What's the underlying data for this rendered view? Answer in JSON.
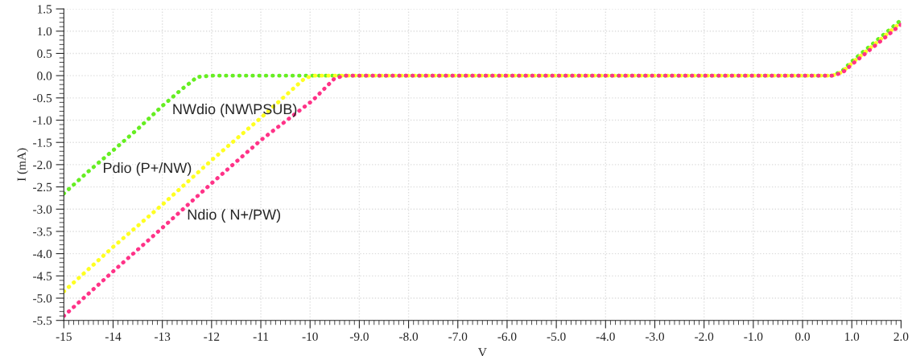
{
  "chart_data": {
    "type": "line",
    "xlabel": "V",
    "ylabel": "I (mA)",
    "series": [
      {
        "name": "NWdio (NW\\PSUB)",
        "color": "#66ee22",
        "x": [
          -15,
          -14.5,
          -14,
          -13.5,
          -13,
          -12.6,
          -12.4,
          -12.3,
          -12.0,
          0.6,
          0.8,
          1.0,
          2.0
        ],
        "values": [
          -2.65,
          -2.15,
          -1.68,
          -1.2,
          -0.68,
          -0.3,
          -0.13,
          -0.03,
          0,
          0,
          0.1,
          0.32,
          1.25
        ]
      },
      {
        "name": "Pdio (P+/NW)",
        "color": "#ffff22",
        "x": [
          -15,
          -14,
          -13,
          -12,
          -11,
          -10.1,
          -9.9,
          0.6,
          0.8,
          1.0,
          2.0
        ],
        "values": [
          -4.85,
          -3.85,
          -2.9,
          -1.9,
          -0.95,
          -0.05,
          0,
          0,
          0.08,
          0.28,
          1.2
        ]
      },
      {
        "name": "Ndio ( N+/PW)",
        "color": "#ff3388",
        "x": [
          -15,
          -14,
          -13,
          -12,
          -11,
          -9.95,
          -9.5,
          -9.3,
          0.6,
          0.8,
          1.0,
          2.0
        ],
        "values": [
          -5.4,
          -4.4,
          -3.42,
          -2.42,
          -1.45,
          -0.56,
          -0.06,
          0,
          0,
          0.06,
          0.25,
          1.15
        ]
      }
    ],
    "xlim": [
      -15,
      2
    ],
    "ylim": [
      -5.5,
      1.5
    ],
    "xticks": [
      -15,
      -14,
      -13,
      -12,
      -11,
      -10,
      {
        "value": -9,
        "label": "-9.0"
      },
      {
        "value": -8,
        "label": "-8.0"
      },
      {
        "value": -7,
        "label": "-7.0"
      },
      {
        "value": -6,
        "label": "-6.0"
      },
      {
        "value": -5,
        "label": "-5.0"
      },
      {
        "value": -4,
        "label": "-4.0"
      },
      {
        "value": -3,
        "label": "-3.0"
      },
      {
        "value": -2,
        "label": "-2.0"
      },
      {
        "value": -1,
        "label": "-1.0"
      },
      {
        "value": 0,
        "label": "0.0"
      },
      {
        "value": 1,
        "label": "1.0"
      },
      {
        "value": 2,
        "label": "2.0"
      }
    ],
    "yticks": [
      1.5,
      {
        "value": 1,
        "label": "1.0"
      },
      0.5,
      {
        "value": 0,
        "label": "0.0"
      },
      -0.5,
      {
        "value": -1,
        "label": "-1.0"
      },
      -1.5,
      {
        "value": -2,
        "label": "-2.0"
      },
      -2.5,
      {
        "value": -3,
        "label": "-3.0"
      },
      -3.5,
      {
        "value": -4,
        "label": "-4.0"
      },
      -4.5,
      {
        "value": -5,
        "label": "-5.0"
      },
      -5.5
    ],
    "grid": true,
    "line_style": "dotted",
    "marker": "none",
    "legend": false
  }
}
